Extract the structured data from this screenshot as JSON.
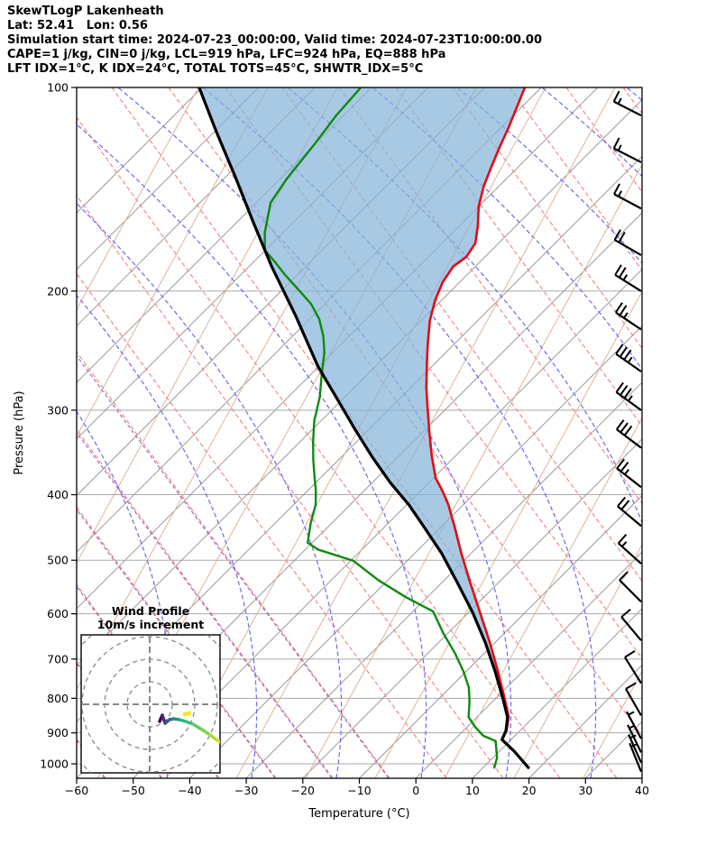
{
  "header": {
    "lines": [
      "SkewTLogP Lakenheath",
      "Lat: 52.41   Lon: 0.56",
      "Simulation start time: 2024-07-23_00:00:00, Valid time: 2024-07-23T10:00:00.00",
      "CAPE=1 j/kg, CIN=0 j/kg, LCL=919 hPa, LFC=924 hPa, EQ=888 hPa",
      "LFT IDX=1°C, K IDX=24°C, TOTAL TOTS=45°C, SHWTR_IDX=5°C"
    ]
  },
  "chart_data": {
    "type": "skewt_logp",
    "x_axis": {
      "label": "Temperature (°C)",
      "ticks": [
        -60,
        -50,
        -40,
        -30,
        -20,
        -10,
        0,
        10,
        20,
        30,
        40
      ],
      "range": [
        -60,
        40
      ]
    },
    "y_axis": {
      "label": "Pressure (hPa)",
      "ticks": [
        100,
        200,
        300,
        400,
        500,
        600,
        700,
        800,
        900,
        1000
      ],
      "range": [
        100,
        1050
      ],
      "scale": "log"
    },
    "series": [
      {
        "name": "temperature",
        "color": "#e50914",
        "points": [
          [
            -102.9,
            100
          ],
          [
            -100.8,
            107
          ],
          [
            -98.6,
            115
          ],
          [
            -96.7,
            123
          ],
          [
            -94.8,
            131
          ],
          [
            -92.7,
            140
          ],
          [
            -90.0,
            150
          ],
          [
            -86.8,
            160
          ],
          [
            -84.1,
            170
          ],
          [
            -83.3,
            178
          ],
          [
            -83.9,
            184
          ],
          [
            -83.0,
            194
          ],
          [
            -81.2,
            206
          ],
          [
            -78.5,
            221
          ],
          [
            -74.8,
            239
          ],
          [
            -71.0,
            258
          ],
          [
            -67.2,
            278
          ],
          [
            -63.0,
            300
          ],
          [
            -58.7,
            324
          ],
          [
            -54.3,
            350
          ],
          [
            -49.6,
            378
          ],
          [
            -46.1,
            395
          ],
          [
            -42.6,
            414
          ],
          [
            -37.5,
            447
          ],
          [
            -31.8,
            488
          ],
          [
            -25.2,
            538
          ],
          [
            -17.9,
            598
          ],
          [
            -11.0,
            661
          ],
          [
            -4.3,
            731
          ],
          [
            1.7,
            802
          ],
          [
            5.6,
            853
          ],
          [
            7.6,
            893
          ],
          [
            8.4,
            921
          ],
          [
            12.6,
            958
          ],
          [
            18.3,
            1016
          ]
        ]
      },
      {
        "name": "dewpoint",
        "color": "#0e8a0e",
        "points": [
          [
            -131.9,
            100
          ],
          [
            -131.3,
            110
          ],
          [
            -130.0,
            122
          ],
          [
            -128.9,
            136
          ],
          [
            -127.5,
            148
          ],
          [
            -123.2,
            164
          ],
          [
            -120.1,
            174
          ],
          [
            -116.3,
            181
          ],
          [
            -112.3,
            189
          ],
          [
            -106.7,
            200
          ],
          [
            -102.4,
            209
          ],
          [
            -98.3,
            220
          ],
          [
            -94.6,
            233
          ],
          [
            -91.6,
            246
          ],
          [
            -87.3,
            270
          ],
          [
            -84.4,
            287
          ],
          [
            -81.2,
            311
          ],
          [
            -77.7,
            334
          ],
          [
            -74.5,
            355
          ],
          [
            -71.0,
            378
          ],
          [
            -68.5,
            395
          ],
          [
            -66.1,
            414
          ],
          [
            -63.7,
            441
          ],
          [
            -60.8,
            471
          ],
          [
            -57.8,
            482
          ],
          [
            -49.5,
            501
          ],
          [
            -41.7,
            535
          ],
          [
            -33.8,
            567
          ],
          [
            -26.5,
            595
          ],
          [
            -20.8,
            641
          ],
          [
            -15.0,
            688
          ],
          [
            -10.4,
            731
          ],
          [
            -6.7,
            771
          ],
          [
            -4.2,
            807
          ],
          [
            -1.5,
            853
          ],
          [
            1.4,
            882
          ],
          [
            4.4,
            909
          ],
          [
            7.5,
            925
          ],
          [
            10.7,
            979
          ],
          [
            12.1,
            1016
          ]
        ]
      },
      {
        "name": "parcel",
        "color": "#000000",
        "points": [
          [
            -160.5,
            100
          ],
          [
            -149.8,
            116
          ],
          [
            -138.6,
            135
          ],
          [
            -127.2,
            158
          ],
          [
            -116.0,
            184
          ],
          [
            -102.9,
            218
          ],
          [
            -90.3,
            258
          ],
          [
            -81.5,
            287
          ],
          [
            -72.8,
            319
          ],
          [
            -64.5,
            352
          ],
          [
            -56.8,
            384
          ],
          [
            -49.6,
            414
          ],
          [
            -42.9,
            447
          ],
          [
            -35.3,
            488
          ],
          [
            -27.5,
            538
          ],
          [
            -19.2,
            598
          ],
          [
            -11.8,
            661
          ],
          [
            -4.8,
            731
          ],
          [
            1.4,
            802
          ],
          [
            5.4,
            853
          ],
          [
            7.5,
            893
          ],
          [
            8.4,
            921
          ],
          [
            12.6,
            958
          ],
          [
            18.3,
            1016
          ]
        ]
      }
    ],
    "shade": {
      "between": [
        "parcel",
        "temperature"
      ],
      "to_pressure": 921,
      "color": "#86b4d8",
      "opacity": 0.72
    },
    "background": {
      "isotherm_color": "#999999",
      "pressure_line_color": "#aaaaaa",
      "dry_adiabat_color": "#f28080",
      "moist_adiabat_color": "#6b6bef",
      "cold_moist_adiabat_color": "#9467bd",
      "mixing_ratio_color": "#dbb49c"
    },
    "wind_barbs": [
      {
        "p": 110,
        "kt": 15,
        "dir": 243
      },
      {
        "p": 129,
        "kt": 15,
        "dir": 243
      },
      {
        "p": 151,
        "kt": 15,
        "dir": 242
      },
      {
        "p": 177,
        "kt": 20,
        "dir": 240
      },
      {
        "p": 200,
        "kt": 25,
        "dir": 238
      },
      {
        "p": 228,
        "kt": 25,
        "dir": 236
      },
      {
        "p": 263,
        "kt": 35,
        "dir": 235
      },
      {
        "p": 300,
        "kt": 35,
        "dir": 234
      },
      {
        "p": 341,
        "kt": 30,
        "dir": 233
      },
      {
        "p": 390,
        "kt": 25,
        "dir": 232
      },
      {
        "p": 445,
        "kt": 20,
        "dir": 230
      },
      {
        "p": 506,
        "kt": 15,
        "dir": 228
      },
      {
        "p": 576,
        "kt": 10,
        "dir": 225
      },
      {
        "p": 657,
        "kt": 10,
        "dir": 220
      },
      {
        "p": 760,
        "kt": 10,
        "dir": 212
      },
      {
        "p": 848,
        "kt": 10,
        "dir": 210
      },
      {
        "p": 918,
        "kt": 5,
        "dir": 208
      },
      {
        "p": 962,
        "kt": 5,
        "dir": 206
      },
      {
        "p": 996,
        "kt": 5,
        "dir": 204
      },
      {
        "p": 1027,
        "kt": 5,
        "dir": 202
      }
    ],
    "hodograph": {
      "title_line1": "Wind Profile",
      "title_line2": "10m/s increment",
      "rings_ms": [
        10,
        20,
        30,
        40
      ],
      "trace_uv_ms": [
        [
          4.4,
          -7.6
        ],
        [
          5.6,
          -4.8
        ],
        [
          6.8,
          -8.4
        ],
        [
          8.8,
          -6.8
        ],
        [
          10.8,
          -6.4
        ],
        [
          13.2,
          -6.8
        ],
        [
          16.0,
          -7.6
        ],
        [
          19.2,
          -8.8
        ],
        [
          23.2,
          -11.2
        ],
        [
          26.8,
          -13.6
        ],
        [
          30.0,
          -16.0
        ],
        [
          31.6,
          -16.8
        ]
      ],
      "trace_colors": [
        "#440154",
        "#472d7b",
        "#3b528b",
        "#2c728e",
        "#21918c",
        "#28ae80",
        "#3fbc73",
        "#5ec962",
        "#84d44b",
        "#addc30",
        "#d8e219"
      ],
      "surface_marker_uv": [
        15.6,
        -4.4
      ],
      "surface_marker_color": "#f4e61e"
    }
  }
}
